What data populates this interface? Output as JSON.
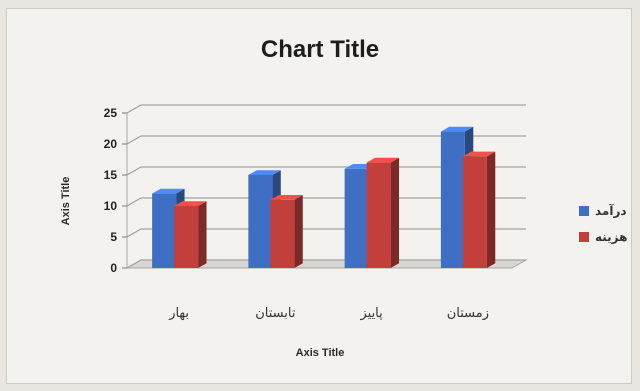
{
  "chart_data": {
    "type": "bar",
    "title": "Chart Title",
    "xlabel": "Axis Title",
    "ylabel": "Axis Title",
    "categories": [
      "بهار",
      "تابستان",
      "پاییز",
      "زمستان"
    ],
    "series": [
      {
        "name": "درآمد",
        "color": "#3f6fc4",
        "values": [
          12,
          15,
          16,
          22
        ]
      },
      {
        "name": "هزینه",
        "color": "#c33f3b",
        "values": [
          10,
          11,
          17,
          18
        ]
      }
    ],
    "ylim": [
      0,
      25
    ],
    "yticks": [
      0,
      5,
      10,
      15,
      20,
      25
    ],
    "grid": true,
    "legend_position": "right",
    "style": "3d-column"
  }
}
